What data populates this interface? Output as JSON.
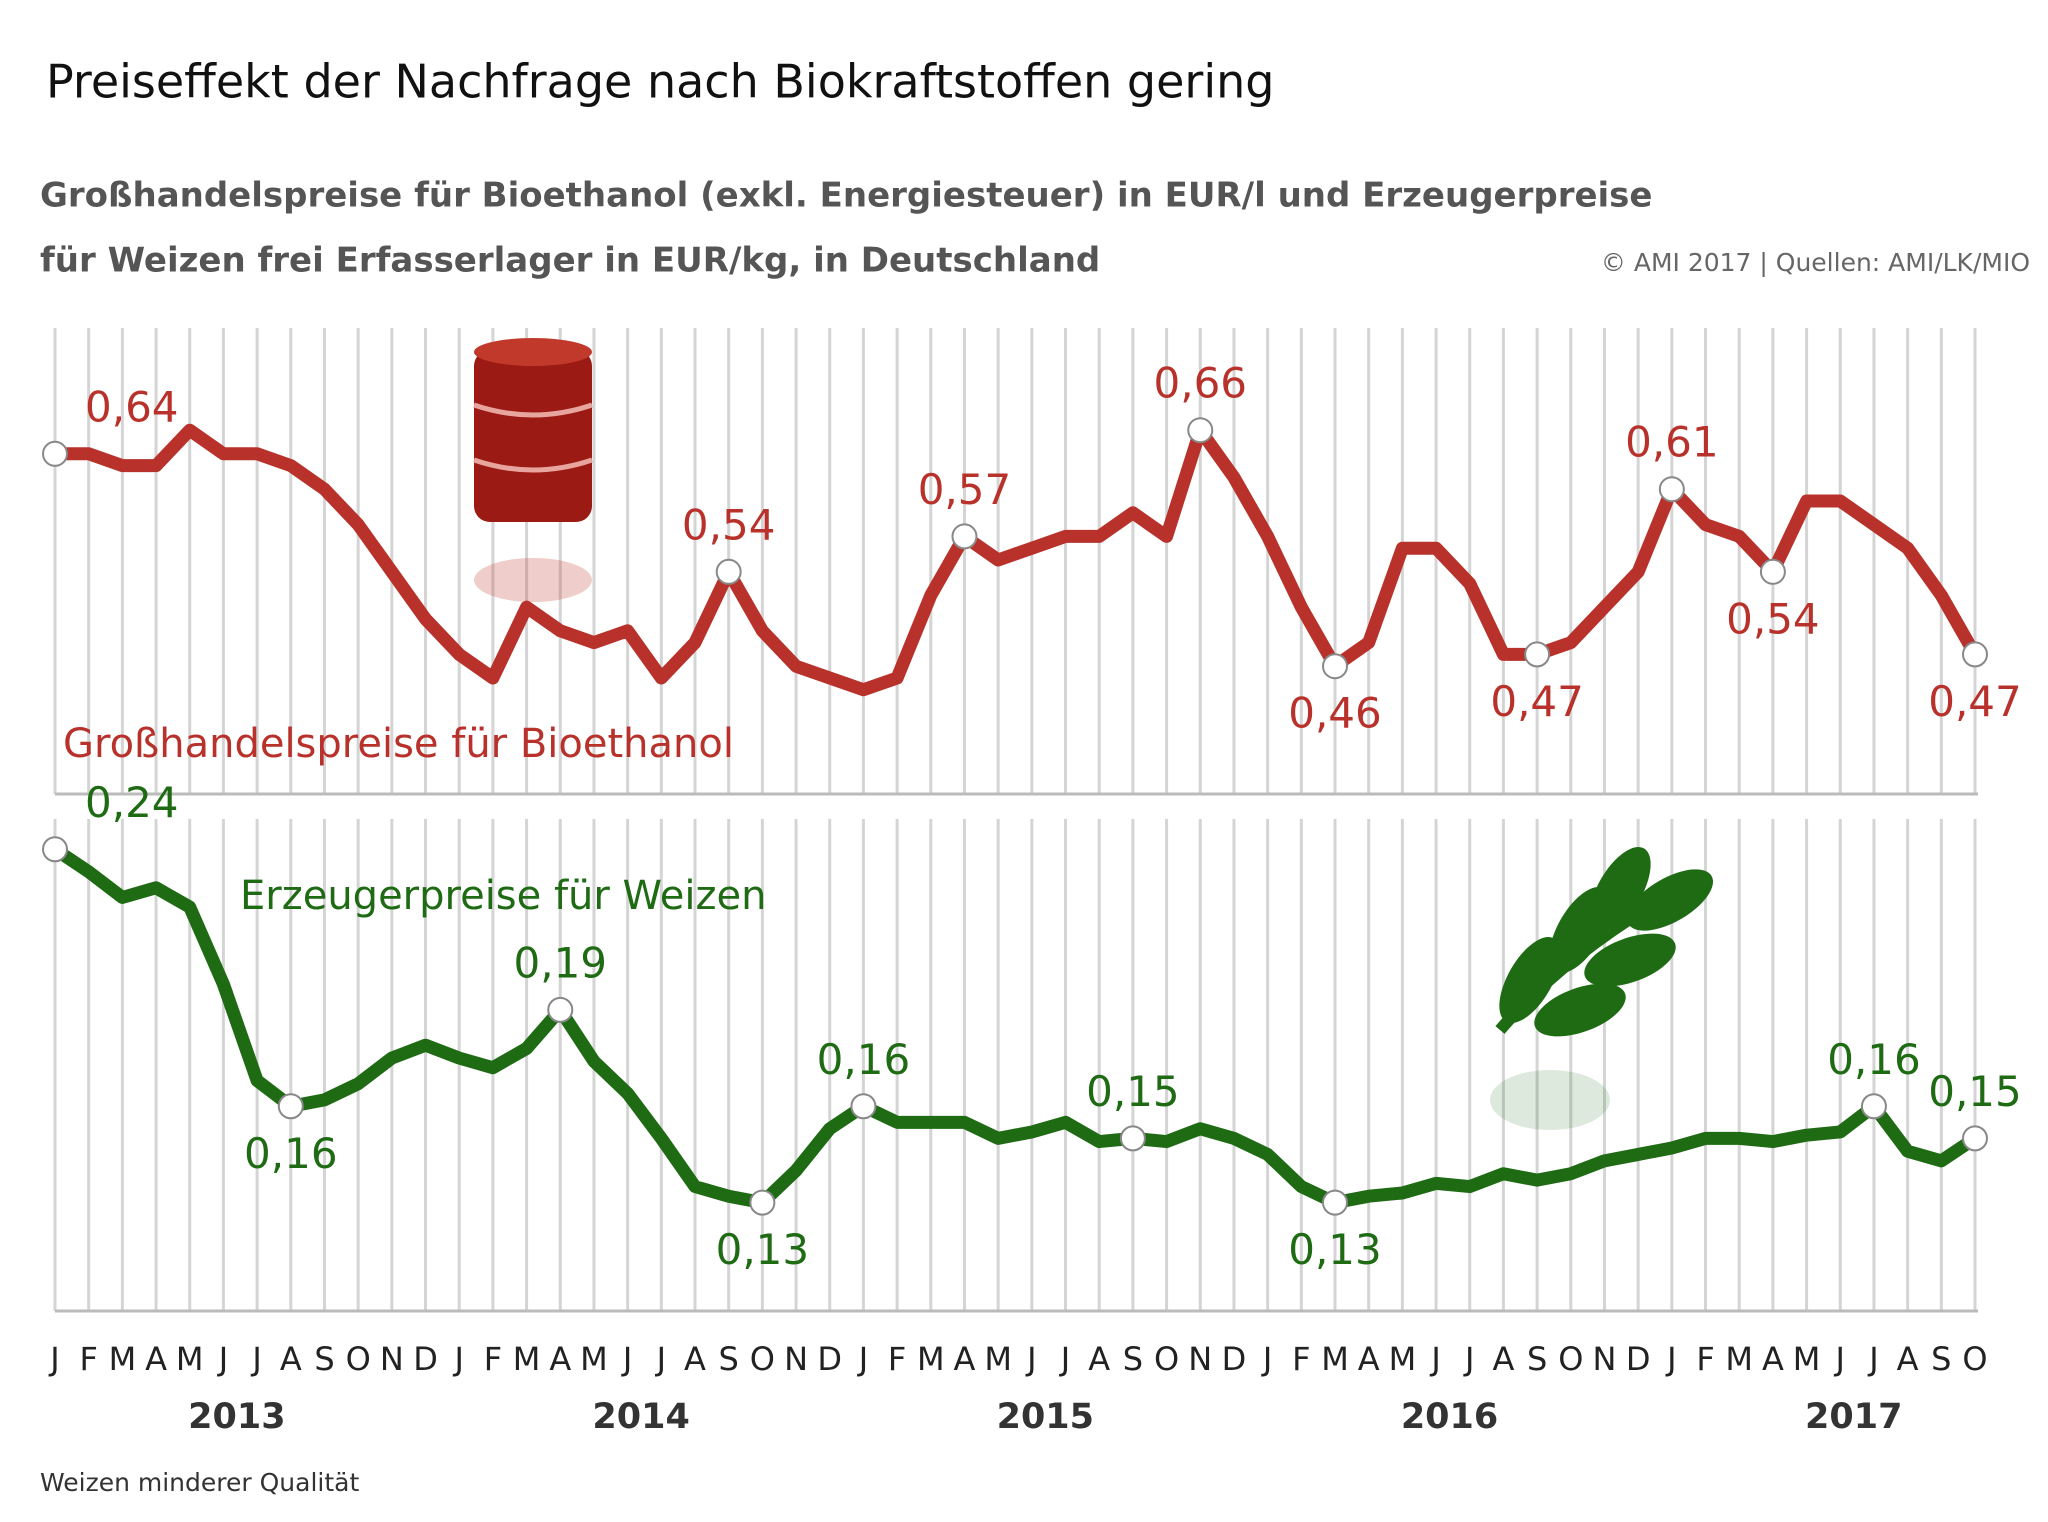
{
  "header": {
    "title": "Preiseffekt der Nachfrage nach Biokraftstoffen gering",
    "subtitle": [
      "Großhandelspreise für Bioethanol (exkl. Energiesteuer) in EUR/l und Erzeugerpreise",
      "für Weizen frei Erfasserlager in EUR/kg, in Deutschland"
    ],
    "source": "© AMI 2017 | Quellen: AMI/LK/MIO"
  },
  "footnote": "Weizen minderer Qualität",
  "chart_data": [
    {
      "type": "line",
      "ylim": [
        0.4,
        0.7
      ],
      "series": [
        {
          "name": "Großhandelspreise für Bioethanol",
          "color": "#b8312a",
          "values": [
            0.64,
            0.64,
            0.63,
            0.63,
            0.66,
            0.64,
            0.64,
            0.63,
            0.61,
            0.58,
            0.54,
            0.5,
            0.47,
            0.45,
            0.51,
            0.49,
            0.48,
            0.49,
            0.45,
            0.48,
            0.54,
            0.49,
            0.46,
            0.45,
            0.44,
            0.45,
            0.52,
            0.57,
            0.55,
            0.56,
            0.57,
            0.57,
            0.59,
            0.57,
            0.66,
            0.62,
            0.57,
            0.51,
            0.46,
            0.48,
            0.56,
            0.56,
            0.53,
            0.47,
            0.47,
            0.48,
            0.51,
            0.54,
            0.61,
            0.58,
            0.57,
            0.54,
            0.6,
            0.6,
            0.58,
            0.56,
            0.52,
            0.47
          ],
          "value_labels": [
            "0,64",
            null,
            null,
            null,
            null,
            null,
            null,
            null,
            null,
            null,
            null,
            null,
            null,
            null,
            null,
            null,
            null,
            null,
            null,
            null,
            "0,54",
            null,
            null,
            null,
            null,
            null,
            null,
            "0,57",
            null,
            null,
            null,
            null,
            null,
            null,
            "0,66",
            null,
            null,
            null,
            "0,46",
            null,
            null,
            null,
            null,
            null,
            "0,47",
            null,
            null,
            null,
            "0,61",
            null,
            null,
            "0,54",
            null,
            null,
            null,
            null,
            null,
            "0,47"
          ]
        }
      ]
    },
    {
      "type": "line",
      "ylim": [
        0.1,
        0.26
      ],
      "categories": [
        "J",
        "F",
        "M",
        "A",
        "M",
        "J",
        "J",
        "A",
        "S",
        "O",
        "N",
        "D",
        "J",
        "F",
        "M",
        "A",
        "M",
        "J",
        "J",
        "A",
        "S",
        "O",
        "N",
        "D",
        "J",
        "F",
        "M",
        "A",
        "M",
        "J",
        "J",
        "A",
        "S",
        "O",
        "N",
        "D",
        "J",
        "F",
        "M",
        "A",
        "M",
        "J",
        "J",
        "A",
        "S",
        "O",
        "N",
        "D",
        "J",
        "F",
        "M",
        "A",
        "M",
        "J",
        "J",
        "A",
        "S",
        "O"
      ],
      "category_groups": [
        "2013",
        "2014",
        "2015",
        "2016",
        "2017"
      ],
      "series": [
        {
          "name": "Erzeugerpreise für Weizen",
          "color": "#1e6b14",
          "values": [
            0.24,
            0.233,
            0.225,
            0.228,
            0.222,
            0.198,
            0.168,
            0.16,
            0.162,
            0.167,
            0.175,
            0.179,
            0.175,
            0.172,
            0.178,
            0.19,
            0.174,
            0.164,
            0.15,
            0.135,
            0.132,
            0.13,
            0.14,
            0.153,
            0.16,
            0.155,
            0.155,
            0.155,
            0.15,
            0.152,
            0.155,
            0.149,
            0.15,
            0.149,
            0.153,
            0.15,
            0.145,
            0.135,
            0.13,
            0.132,
            0.133,
            0.136,
            0.135,
            0.139,
            0.137,
            0.139,
            0.143,
            0.145,
            0.147,
            0.15,
            0.15,
            0.149,
            0.151,
            0.152,
            0.16,
            0.146,
            0.143,
            0.15
          ],
          "value_labels": [
            "0,24",
            null,
            null,
            null,
            null,
            null,
            null,
            "0,16",
            null,
            null,
            null,
            null,
            null,
            null,
            null,
            "0,19",
            null,
            null,
            null,
            null,
            null,
            "0,13",
            null,
            null,
            "0,16",
            null,
            null,
            null,
            null,
            null,
            null,
            null,
            "0,15",
            null,
            null,
            null,
            null,
            null,
            "0,13",
            null,
            null,
            null,
            null,
            null,
            null,
            null,
            null,
            null,
            null,
            null,
            null,
            null,
            null,
            null,
            "0,16",
            null,
            null,
            "0,15"
          ]
        }
      ]
    }
  ]
}
